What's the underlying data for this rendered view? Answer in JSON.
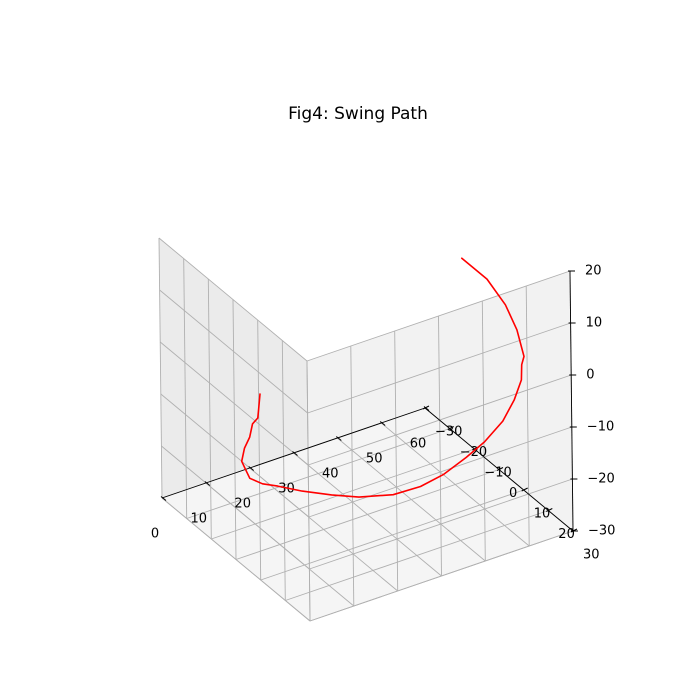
{
  "chart_data": {
    "type": "line",
    "projection": "3d",
    "title": "Fig4: Swing Path",
    "xlabel": "",
    "ylabel": "",
    "zlabel": "",
    "xlim": [
      0,
      60
    ],
    "ylim": [
      -30,
      30
    ],
    "zlim": [
      -30,
      20
    ],
    "x_ticks": [
      0,
      10,
      20,
      30,
      40,
      50,
      60
    ],
    "y_ticks": [
      -30,
      -20,
      -10,
      0,
      10,
      20,
      30
    ],
    "z_ticks": [
      -30,
      -20,
      -10,
      0,
      10,
      20
    ],
    "grid": true,
    "series": [
      {
        "color": "#ff0000",
        "points": [
          [
            -3,
            16,
            9
          ],
          [
            0,
            10,
            3
          ],
          [
            2,
            6,
            -1
          ],
          [
            3,
            2,
            -4
          ],
          [
            4,
            -1,
            -8
          ],
          [
            5,
            -5,
            -12
          ],
          [
            6,
            -8,
            -16
          ],
          [
            8,
            -10,
            -19
          ],
          [
            10,
            -12,
            -22
          ],
          [
            14,
            -14,
            -25
          ],
          [
            18,
            -15,
            -27
          ],
          [
            23,
            -14,
            -29
          ],
          [
            28,
            -11,
            -30
          ],
          [
            32,
            -7,
            -30
          ],
          [
            37,
            -2,
            -29
          ],
          [
            41,
            2,
            -27
          ],
          [
            44,
            6,
            -24
          ],
          [
            47,
            10,
            -20
          ],
          [
            49,
            14,
            -16
          ],
          [
            51,
            18,
            -11
          ],
          [
            52,
            21,
            -6
          ],
          [
            52,
            24,
            -1
          ],
          [
            51,
            26,
            3
          ],
          [
            51,
            27,
            5
          ],
          [
            50,
            26,
            10
          ],
          [
            48,
            25,
            15
          ],
          [
            45,
            23,
            20
          ],
          [
            41,
            20,
            24
          ]
        ]
      }
    ]
  }
}
